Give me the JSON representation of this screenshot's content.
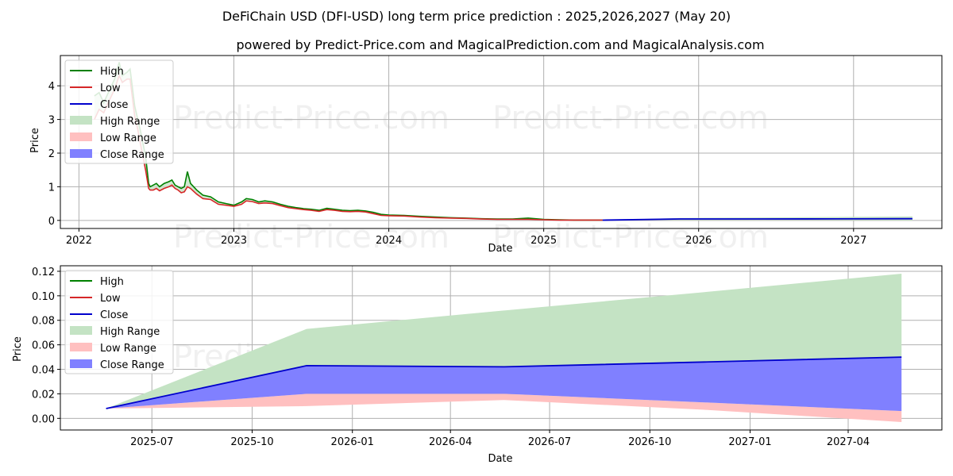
{
  "title": "DeFiChain USD (DFI-USD) long term price prediction : 2025,2026,2027 (May 20)",
  "subtitle": "powered by Predict-Price.com and MagicalPrediction.com and MagicalAnalysis.com",
  "watermark": "Predict-Price.com",
  "colors": {
    "high": "#008000",
    "low": "#d62728",
    "close": "#0000cc",
    "high_range": "#c4e3c4",
    "low_range": "#ffc0c0",
    "close_range": "#8080ff"
  },
  "chart_data": [
    {
      "type": "line",
      "xlabel": "Date",
      "ylabel": "Price",
      "x_unit": "decimal year",
      "xlim": [
        2021.88,
        2027.57
      ],
      "ylim": [
        -0.24,
        4.9
      ],
      "x_ticks": [
        2022,
        2023,
        2024,
        2025,
        2026,
        2027
      ],
      "x_tick_labels": [
        "2022",
        "2023",
        "2024",
        "2025",
        "2026",
        "2027"
      ],
      "y_ticks": [
        0,
        1,
        2,
        3,
        4
      ],
      "y_tick_labels": [
        "0",
        "1",
        "2",
        "3",
        "4"
      ],
      "grid": true,
      "legend_position": "top-left",
      "legend": [
        "High",
        "Low",
        "Close",
        "High Range",
        "Low Range",
        "Close Range"
      ],
      "history": {
        "x": [
          2022.1,
          2022.13,
          2022.16,
          2022.2,
          2022.23,
          2022.26,
          2022.28,
          2022.31,
          2022.33,
          2022.36,
          2022.38,
          2022.4,
          2022.43,
          2022.45,
          2022.46,
          2022.48,
          2022.5,
          2022.52,
          2022.55,
          2022.58,
          2022.6,
          2022.62,
          2022.64,
          2022.66,
          2022.68,
          2022.7,
          2022.72,
          2022.76,
          2022.8,
          2022.85,
          2022.9,
          2022.95,
          2023.0,
          2023.05,
          2023.08,
          2023.12,
          2023.16,
          2023.2,
          2023.25,
          2023.3,
          2023.35,
          2023.4,
          2023.45,
          2023.5,
          2023.55,
          2023.6,
          2023.65,
          2023.7,
          2023.75,
          2023.8,
          2023.85,
          2023.9,
          2023.95,
          2024.0,
          2024.1,
          2024.2,
          2024.3,
          2024.4,
          2024.5,
          2024.6,
          2024.7,
          2024.8,
          2024.9,
          2025.0,
          2025.1,
          2025.2,
          2025.3,
          2025.38
        ],
        "high": [
          3.7,
          3.8,
          3.5,
          3.9,
          4.2,
          4.7,
          4.3,
          4.4,
          4.5,
          3.4,
          3.0,
          2.6,
          1.9,
          1.1,
          1.0,
          1.05,
          1.1,
          1.0,
          1.1,
          1.15,
          1.2,
          1.05,
          1.0,
          0.95,
          1.0,
          1.45,
          1.1,
          0.9,
          0.75,
          0.7,
          0.55,
          0.5,
          0.45,
          0.55,
          0.65,
          0.62,
          0.55,
          0.58,
          0.55,
          0.48,
          0.42,
          0.38,
          0.35,
          0.33,
          0.3,
          0.36,
          0.33,
          0.3,
          0.29,
          0.3,
          0.28,
          0.24,
          0.18,
          0.16,
          0.15,
          0.12,
          0.1,
          0.08,
          0.07,
          0.05,
          0.04,
          0.04,
          0.07,
          0.03,
          0.02,
          0.01,
          0.01,
          0.01
        ],
        "low": [
          3.0,
          3.3,
          3.2,
          3.6,
          3.9,
          4.3,
          4.1,
          4.2,
          4.2,
          3.1,
          2.7,
          2.2,
          1.5,
          0.95,
          0.9,
          0.9,
          0.95,
          0.88,
          0.95,
          1.0,
          1.05,
          0.95,
          0.9,
          0.82,
          0.85,
          1.0,
          0.95,
          0.78,
          0.65,
          0.62,
          0.48,
          0.45,
          0.42,
          0.48,
          0.58,
          0.56,
          0.5,
          0.52,
          0.5,
          0.44,
          0.38,
          0.35,
          0.32,
          0.3,
          0.27,
          0.32,
          0.3,
          0.27,
          0.26,
          0.27,
          0.25,
          0.2,
          0.15,
          0.14,
          0.13,
          0.1,
          0.08,
          0.07,
          0.06,
          0.04,
          0.03,
          0.03,
          0.03,
          0.02,
          0.01,
          0.01,
          0.01,
          0.01
        ]
      },
      "forecast": {
        "x": [
          2025.38,
          2025.88,
          2026.38,
          2026.88,
          2027.38
        ],
        "close": [
          0.008,
          0.043,
          0.042,
          0.046,
          0.05
        ],
        "high": [
          0.008,
          0.073,
          0.088,
          0.103,
          0.118
        ],
        "low": [
          0.008,
          0.01,
          0.015,
          0.007,
          -0.003
        ],
        "close_low": [
          0.008,
          0.02,
          0.02,
          0.013,
          0.006
        ]
      }
    },
    {
      "type": "area",
      "xlabel": "Date",
      "ylabel": "Price",
      "x_unit": "date",
      "xlim": [
        "2025-04-08",
        "2027-06-26"
      ],
      "ylim": [
        -0.0095,
        0.1245
      ],
      "x_ticks": [
        "2025-07-01",
        "2025-10-01",
        "2026-01-01",
        "2026-04-01",
        "2026-07-01",
        "2026-10-01",
        "2027-01-01",
        "2027-04-01"
      ],
      "x_tick_labels": [
        "2025-07",
        "2025-10",
        "2026-01",
        "2026-04",
        "2026-07",
        "2026-10",
        "2027-01",
        "2027-04"
      ],
      "y_ticks": [
        0.0,
        0.02,
        0.04,
        0.06,
        0.08,
        0.1,
        0.12
      ],
      "y_tick_labels": [
        "0.00",
        "0.02",
        "0.04",
        "0.06",
        "0.08",
        "0.10",
        "0.12"
      ],
      "grid": true,
      "legend_position": "top-left",
      "legend": [
        "High",
        "Low",
        "Close",
        "High Range",
        "Low Range",
        "Close Range"
      ],
      "x": [
        "2025-05-20",
        "2025-11-20",
        "2026-05-20",
        "2026-11-20",
        "2027-05-20"
      ],
      "series": [
        {
          "name": "High",
          "values": [
            0.008,
            0.073,
            0.088,
            0.103,
            0.118
          ]
        },
        {
          "name": "Low",
          "values": [
            0.008,
            0.01,
            0.015,
            0.007,
            -0.003
          ]
        },
        {
          "name": "Close",
          "values": [
            0.008,
            0.043,
            0.042,
            0.046,
            0.05
          ]
        },
        {
          "name": "Close Range Low",
          "values": [
            0.008,
            0.02,
            0.02,
            0.013,
            0.006
          ]
        }
      ]
    }
  ]
}
